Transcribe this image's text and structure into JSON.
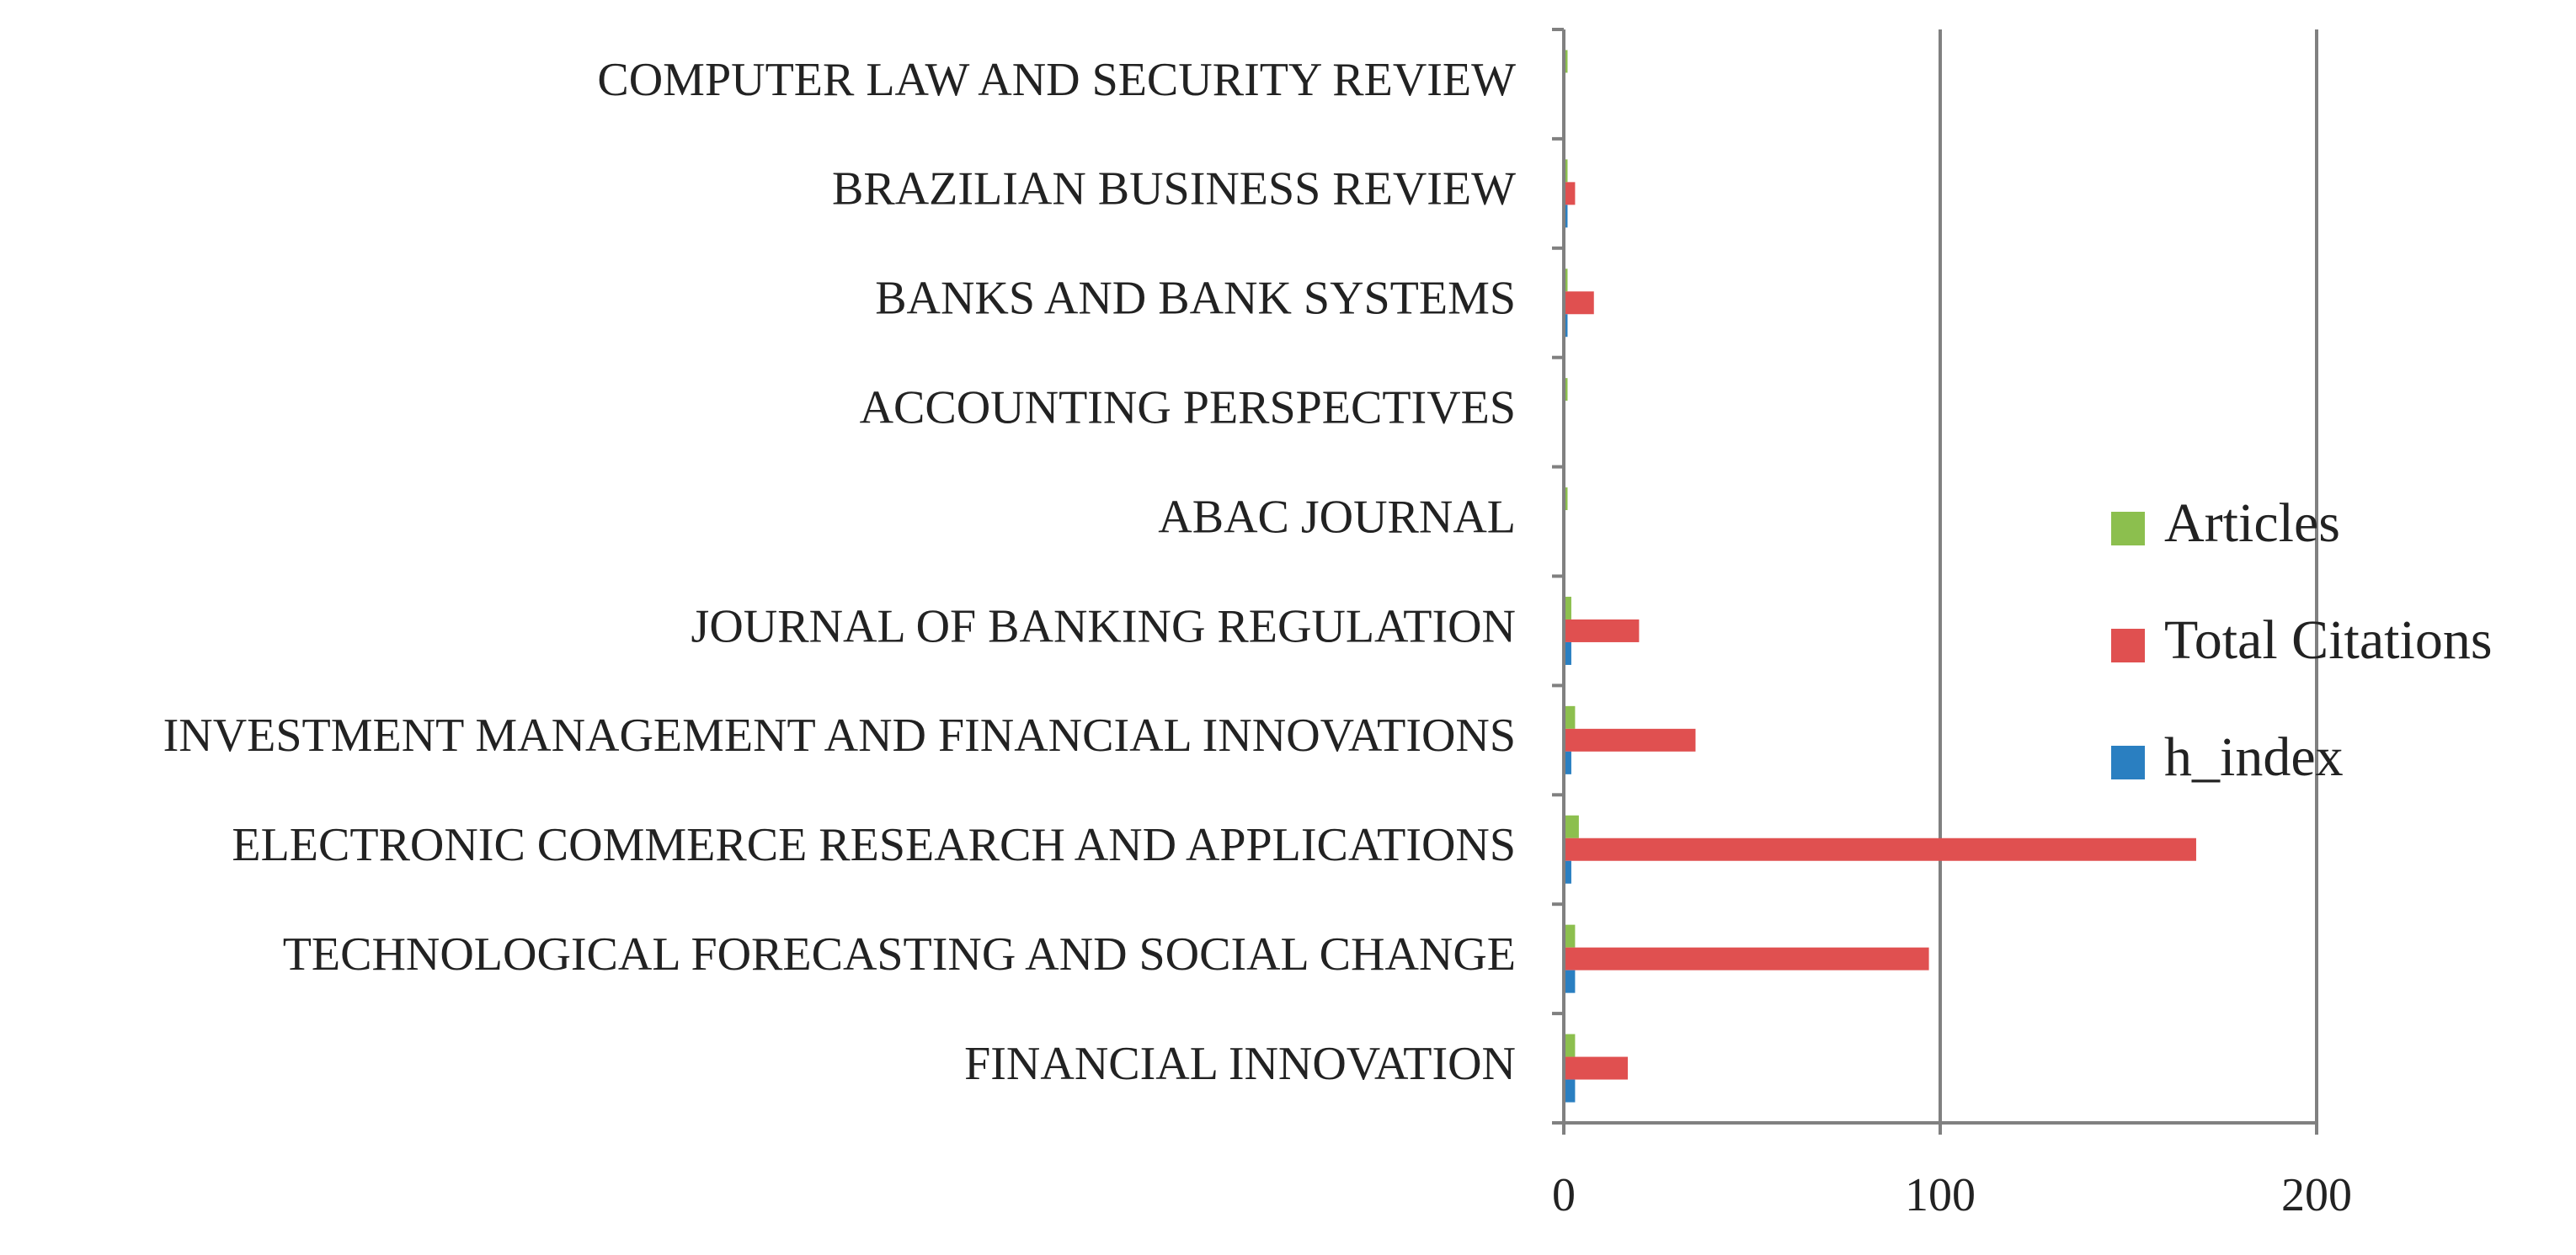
{
  "chart_data": {
    "type": "bar",
    "orientation": "horizontal",
    "categories": [
      "FINANCIAL INNOVATION",
      "TECHNOLOGICAL FORECASTING AND SOCIAL CHANGE",
      "ELECTRONIC COMMERCE RESEARCH AND APPLICATIONS",
      "INVESTMENT MANAGEMENT AND FINANCIAL INNOVATIONS",
      "JOURNAL OF BANKING REGULATION",
      "ABAC JOURNAL",
      "ACCOUNTING PERSPECTIVES",
      "BANKS AND BANK SYSTEMS",
      "BRAZILIAN BUSINESS REVIEW",
      "COMPUTER LAW AND SECURITY REVIEW"
    ],
    "series": [
      {
        "name": "Articles",
        "color": "#8cbf4e",
        "values": [
          3,
          3,
          4,
          3,
          2,
          1,
          1,
          1,
          1,
          1
        ]
      },
      {
        "name": "Total Citations",
        "color": "#e05050",
        "values": [
          17,
          97,
          168,
          35,
          20,
          0,
          0,
          8,
          3,
          0
        ]
      },
      {
        "name": "h_index",
        "color": "#2a7fc1",
        "values": [
          3,
          3,
          2,
          2,
          2,
          0,
          0,
          1,
          1,
          0
        ]
      }
    ],
    "xlim": [
      0,
      200
    ],
    "xticks": [
      0,
      100,
      200
    ],
    "grid": true,
    "legend": "right"
  }
}
